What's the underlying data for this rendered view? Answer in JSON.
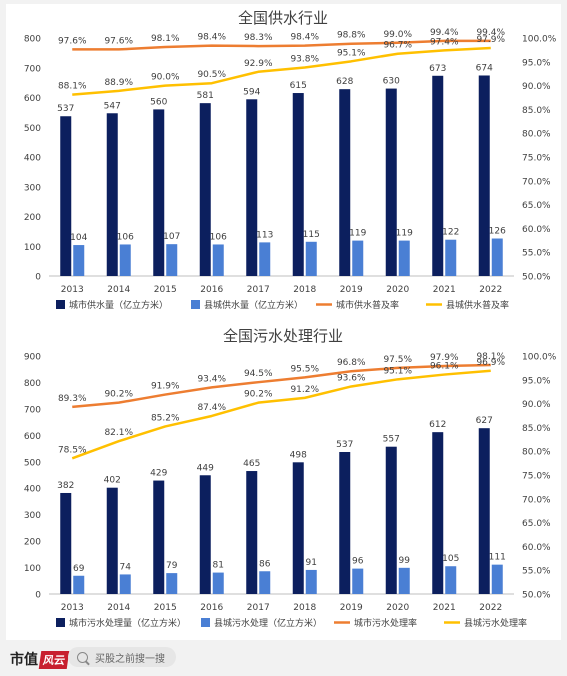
{
  "chart_data": [
    {
      "type": "bar",
      "title": "全国供水行业",
      "categories": [
        "2013",
        "2014",
        "2015",
        "2016",
        "2017",
        "2018",
        "2019",
        "2020",
        "2021",
        "2022"
      ],
      "ylim": [
        0,
        800
      ],
      "y_ticks": [
        "0",
        "100",
        "200",
        "300",
        "400",
        "500",
        "600",
        "700",
        "800"
      ],
      "y2lim": [
        50,
        100
      ],
      "y2_ticks": [
        "50.0%",
        "55.0%",
        "60.0%",
        "65.0%",
        "70.0%",
        "75.0%",
        "80.0%",
        "85.0%",
        "90.0%",
        "95.0%",
        "100.0%"
      ],
      "legend_position": "bottom",
      "bar_series": [
        {
          "name": "城市供水量（亿立方米）",
          "color": "#0c1f5e",
          "values": [
            537,
            547,
            560,
            581,
            594,
            615,
            628,
            630,
            673,
            674
          ]
        },
        {
          "name": "县城供水量（亿立方米）",
          "color": "#4a7fd4",
          "values": [
            104,
            106,
            107,
            106,
            113,
            115,
            119,
            119,
            122,
            126
          ]
        }
      ],
      "line_series": [
        {
          "name": "城市供水普及率",
          "color": "#ed7d31",
          "values": [
            97.6,
            97.6,
            98.1,
            98.4,
            98.3,
            98.4,
            98.8,
            99.0,
            99.4,
            99.4
          ]
        },
        {
          "name": "县城供水普及率",
          "color": "#ffc000",
          "values": [
            88.1,
            88.9,
            90.0,
            90.5,
            92.9,
            93.8,
            95.1,
            96.7,
            97.4,
            97.9
          ]
        }
      ]
    },
    {
      "type": "bar",
      "title": "全国污水处理行业",
      "categories": [
        "2013",
        "2014",
        "2015",
        "2016",
        "2017",
        "2018",
        "2019",
        "2020",
        "2021",
        "2022"
      ],
      "ylim": [
        0,
        900
      ],
      "y_ticks": [
        "0",
        "100",
        "200",
        "300",
        "400",
        "500",
        "600",
        "700",
        "800",
        "900"
      ],
      "y2lim": [
        50,
        100
      ],
      "y2_ticks": [
        "50.0%",
        "55.0%",
        "60.0%",
        "65.0%",
        "70.0%",
        "75.0%",
        "80.0%",
        "85.0%",
        "90.0%",
        "95.0%",
        "100.0%"
      ],
      "legend_position": "bottom",
      "bar_series": [
        {
          "name": "城市污水处理量（亿立方米）",
          "color": "#0c1f5e",
          "values": [
            382,
            402,
            429,
            449,
            465,
            498,
            537,
            557,
            612,
            627
          ]
        },
        {
          "name": "县城污水处理（亿立方米）",
          "color": "#4a7fd4",
          "values": [
            69,
            74,
            79,
            81,
            86,
            91,
            96,
            99,
            105,
            111
          ]
        }
      ],
      "line_series": [
        {
          "name": "城市污水处理率",
          "color": "#ed7d31",
          "values": [
            89.3,
            90.2,
            91.9,
            93.4,
            94.5,
            95.5,
            96.8,
            97.5,
            97.9,
            98.1
          ]
        },
        {
          "name": "县城污水处理率",
          "color": "#ffc000",
          "values": [
            78.5,
            82.1,
            85.2,
            87.4,
            90.2,
            91.2,
            93.6,
            95.1,
            96.1,
            96.9
          ]
        }
      ]
    }
  ],
  "footer": {
    "brand": "市值",
    "brand_badge": "风云",
    "search_placeholder": "买股之前搜一搜"
  }
}
